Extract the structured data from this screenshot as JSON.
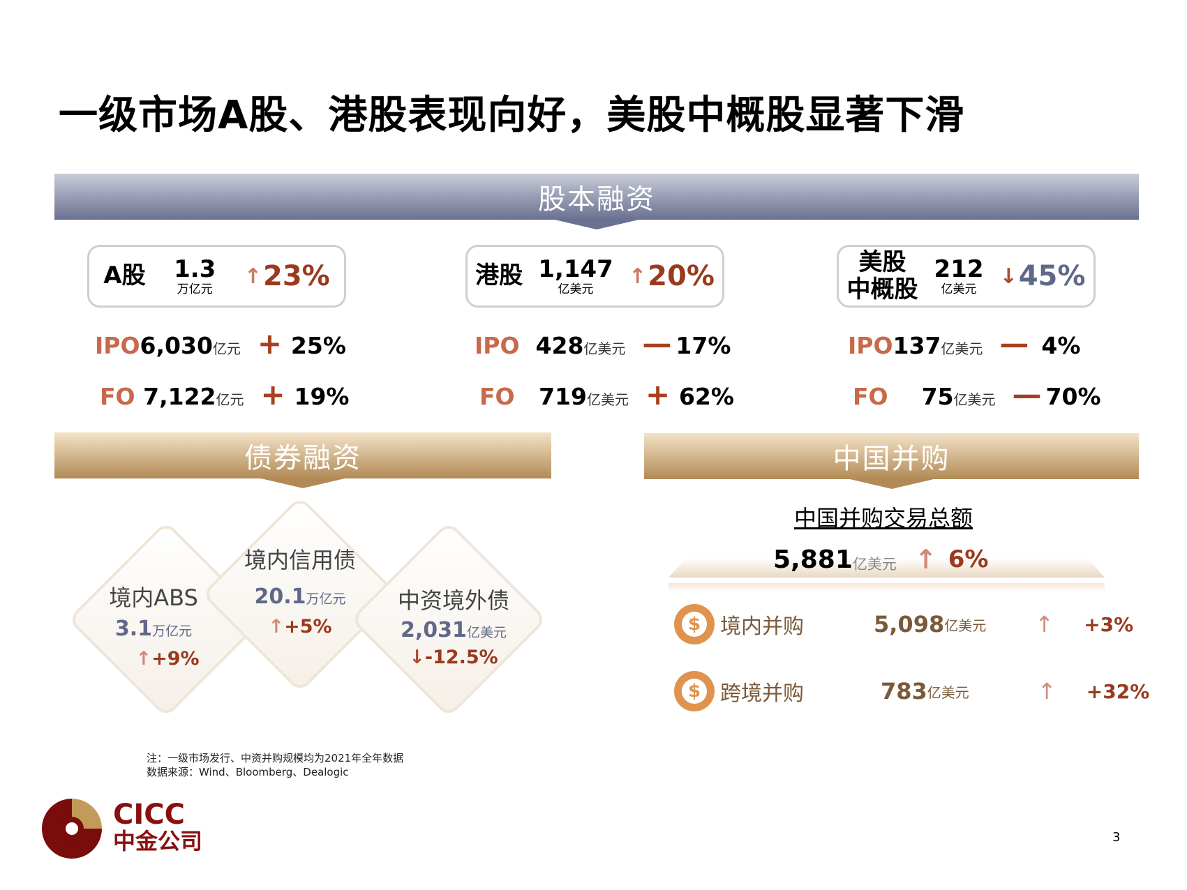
{
  "title": "一级市场A股、港股表现向好，美股中概股显著下滑",
  "equity": {
    "header": "股本融资",
    "markets": [
      {
        "name": "A股",
        "value": "1.3",
        "unit": "万亿元",
        "direction": "up",
        "pct": "23%",
        "ipo": {
          "label": "IPO",
          "value": "6,030",
          "unit": "亿元",
          "sign": "+",
          "pct": "25%"
        },
        "fo": {
          "label": "FO",
          "value": "7,122",
          "unit": "亿元",
          "sign": "+",
          "pct": "19%"
        }
      },
      {
        "name": "港股",
        "value": "1,147",
        "unit": "亿美元",
        "direction": "up",
        "pct": "20%",
        "ipo": {
          "label": "IPO",
          "value": "428",
          "unit": "亿美元",
          "sign": "—",
          "pct": "17%"
        },
        "fo": {
          "label": "FO",
          "value": "719",
          "unit": "亿美元",
          "sign": "+",
          "pct": "62%"
        }
      },
      {
        "name": "美股中概股",
        "name_line1": "美股",
        "name_line2": "中概股",
        "value": "212",
        "unit": "亿美元",
        "direction": "down",
        "pct": "45%",
        "ipo": {
          "label": "IPO",
          "value": "137",
          "unit": "亿美元",
          "sign": "—",
          "pct": "4%"
        },
        "fo": {
          "label": "FO",
          "value": "75",
          "unit": "亿美元",
          "sign": "—",
          "pct": "70%"
        }
      }
    ]
  },
  "bond": {
    "header": "债券融资",
    "items": [
      {
        "name": "境内ABS",
        "value": "3.1",
        "unit": "万亿元",
        "pct": "+9%",
        "direction": "up"
      },
      {
        "name": "境内信用债",
        "value": "20.1",
        "unit": "万亿元",
        "pct": "+5%",
        "direction": "up"
      },
      {
        "name": "中资境外债",
        "value": "2,031",
        "unit": "亿美元",
        "pct": "-12.5%",
        "direction": "down"
      }
    ]
  },
  "mna": {
    "header": "中国并购",
    "subtitle": "中国并购交易总额",
    "total": {
      "value": "5,881",
      "unit": "亿美元",
      "pct": "6%"
    },
    "items": [
      {
        "name": "境内并购",
        "value": "5,098",
        "unit": "亿美元",
        "pct": "+3%"
      },
      {
        "name": "跨境并购",
        "value": "783",
        "unit": "亿美元",
        "pct": "+32%"
      }
    ]
  },
  "notes": [
    "注：一级市场发行、中资并购规模均为2021年全年数据",
    "数据来源：Wind、Bloomberg、Dealogic"
  ],
  "logo": {
    "en": "CICC",
    "cn": "中金公司"
  },
  "page_number": "3",
  "colors": {
    "accent": "#9a3a1e",
    "label": "#c8694a",
    "navy_band": "#6a7090",
    "gold_band": "#b28a55"
  }
}
